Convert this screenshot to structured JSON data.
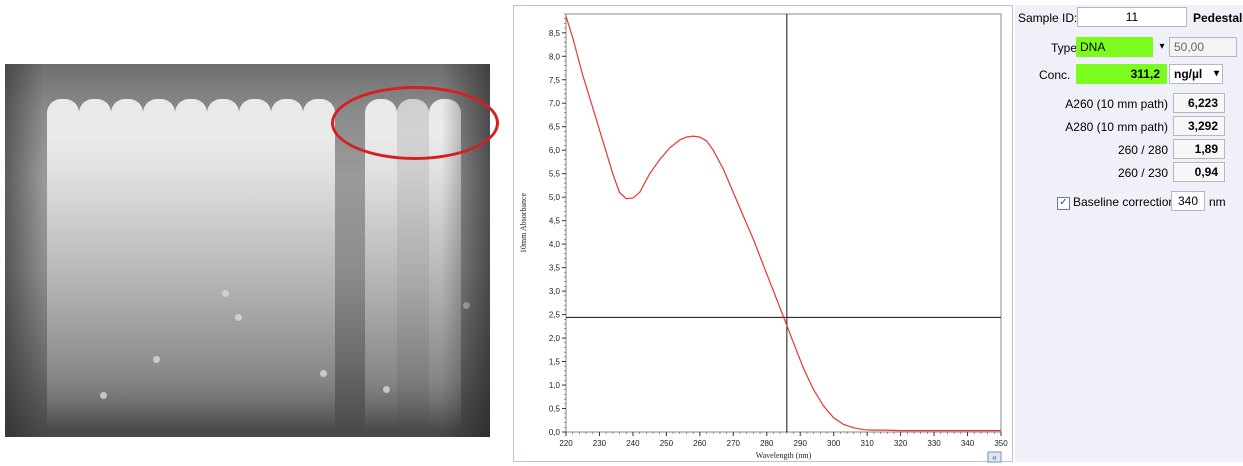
{
  "side_panel": {
    "sample_id_label": "Sample ID:",
    "sample_id_value": "11",
    "mode": "Pedestal",
    "type_label": "Type:",
    "type_value": "DNA",
    "factor_value": "50,00",
    "conc_label": "Conc.",
    "conc_value": "311,2",
    "conc_unit": "ng/µl",
    "readouts": [
      {
        "label": "A260 (10 mm path)",
        "value": "6,223"
      },
      {
        "label": "A280 (10 mm path)",
        "value": "3,292"
      },
      {
        "label": "260 / 280",
        "value": "1,89"
      },
      {
        "label": "260 / 230",
        "value": "0,94"
      }
    ],
    "baseline_label": "Baseline correction",
    "baseline_checked": true,
    "baseline_value": "340",
    "baseline_unit": "nm"
  },
  "chart_data": {
    "type": "line",
    "xlabel": "Wavelength (nm)",
    "ylabel": "10mm Absorbance",
    "xlim": [
      220,
      350
    ],
    "ylim": [
      0,
      8.9
    ],
    "x_ticks": [
      "220",
      "230",
      "240",
      "250",
      "260",
      "270",
      "280",
      "290",
      "300",
      "310",
      "320",
      "330",
      "340",
      "350"
    ],
    "y_ticks": [
      "0,0",
      "0,5",
      "1,0",
      "1,5",
      "2,0",
      "2,5",
      "3,0",
      "3,5",
      "4,0",
      "4,5",
      "5,0",
      "5,5",
      "6,0",
      "6,5",
      "7,0",
      "7,5",
      "8,0",
      "8,5"
    ],
    "series": [
      {
        "color": "#e8362f",
        "x": [
          220,
          222,
          225,
          228,
          231,
          234,
          236,
          238,
          240,
          242,
          245,
          248,
          251,
          254,
          256,
          258,
          260,
          262,
          264,
          267,
          270,
          273,
          276,
          279,
          282,
          285,
          288,
          291,
          294,
          297,
          300,
          303,
          306,
          309,
          312,
          315,
          320,
          330,
          340,
          350
        ],
        "y": [
          8.85,
          8.4,
          7.6,
          6.9,
          6.2,
          5.5,
          5.1,
          4.97,
          4.98,
          5.1,
          5.5,
          5.8,
          6.05,
          6.22,
          6.28,
          6.3,
          6.28,
          6.2,
          6.0,
          5.6,
          5.1,
          4.6,
          4.1,
          3.55,
          3.0,
          2.45,
          1.9,
          1.35,
          0.9,
          0.55,
          0.3,
          0.16,
          0.09,
          0.05,
          0.04,
          0.04,
          0.03,
          0.03,
          0.03,
          0.03
        ]
      }
    ],
    "crosshair": {
      "x": 286,
      "y": 2.44
    },
    "grid": false
  }
}
